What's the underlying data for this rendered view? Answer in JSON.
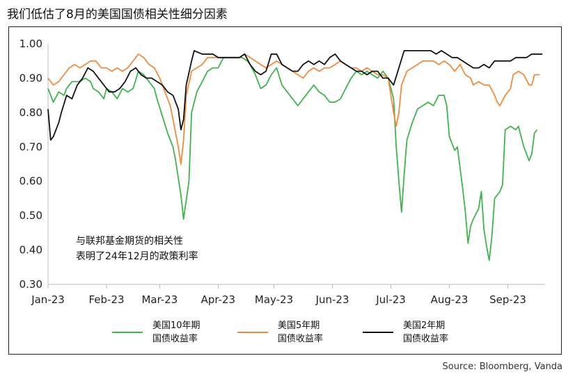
{
  "page": {
    "title": "我们低估了8月的美国国债相关性细分因素",
    "source": "Source: Bloomberg, Vanda"
  },
  "chart_data": {
    "type": "line",
    "title": "我们低估了8月的美国国债相关性细分因素",
    "xlabel": "",
    "ylabel": "",
    "ylim": [
      0.3,
      1.0
    ],
    "yticks": [
      "1.00",
      "0.90",
      "0.80",
      "0.70",
      "0.60",
      "0.50",
      "0.40",
      "0.30"
    ],
    "ytick_values": [
      1.0,
      0.9,
      0.8,
      0.7,
      0.6,
      0.5,
      0.4,
      0.3
    ],
    "xlim": [
      0,
      187
    ],
    "xticks": [
      {
        "label": "Jan-23",
        "x": 0
      },
      {
        "label": "Feb-23",
        "x": 22
      },
      {
        "label": "Mar-23",
        "x": 42
      },
      {
        "label": "Apr-23",
        "x": 64
      },
      {
        "label": "May-23",
        "x": 85
      },
      {
        "label": "Jun-23",
        "x": 107
      },
      {
        "label": "Jul-23",
        "x": 129
      },
      {
        "label": "Aug-23",
        "x": 151
      },
      {
        "label": "Sep-23",
        "x": 173
      }
    ],
    "grid": false,
    "legend_position": "bottom",
    "annotation": {
      "lines": [
        "与联邦基金期货的相关性",
        "表明了24年12月的政策利率"
      ]
    },
    "series": [
      {
        "name": "美国10年期国债收益率",
        "legend_lines": [
          "美国10年期",
          "国债收益率"
        ],
        "color": "#3cb54a",
        "points": [
          [
            0,
            0.87
          ],
          [
            2,
            0.83
          ],
          [
            4,
            0.86
          ],
          [
            6,
            0.85
          ],
          [
            7,
            0.87
          ],
          [
            9,
            0.89
          ],
          [
            12,
            0.89
          ],
          [
            14,
            0.9
          ],
          [
            16,
            0.89
          ],
          [
            17,
            0.87
          ],
          [
            19,
            0.86
          ],
          [
            21,
            0.84
          ],
          [
            22,
            0.87
          ],
          [
            24,
            0.86
          ],
          [
            26,
            0.84
          ],
          [
            28,
            0.87
          ],
          [
            30,
            0.86
          ],
          [
            32,
            0.87
          ],
          [
            34,
            0.92
          ],
          [
            36,
            0.91
          ],
          [
            38,
            0.89
          ],
          [
            40,
            0.87
          ],
          [
            41,
            0.84
          ],
          [
            43,
            0.79
          ],
          [
            45,
            0.74
          ],
          [
            47,
            0.7
          ],
          [
            48,
            0.66
          ],
          [
            50,
            0.56
          ],
          [
            51,
            0.49
          ],
          [
            53,
            0.6
          ],
          [
            54,
            0.8
          ],
          [
            56,
            0.86
          ],
          [
            58,
            0.89
          ],
          [
            60,
            0.92
          ],
          [
            62,
            0.93
          ],
          [
            64,
            0.93
          ],
          [
            66,
            0.96
          ],
          [
            68,
            0.96
          ],
          [
            70,
            0.96
          ],
          [
            73,
            0.96
          ],
          [
            75,
            0.95
          ],
          [
            76,
            0.94
          ],
          [
            78,
            0.91
          ],
          [
            80,
            0.87
          ],
          [
            82,
            0.88
          ],
          [
            84,
            0.91
          ],
          [
            86,
            0.93
          ],
          [
            88,
            0.88
          ],
          [
            90,
            0.86
          ],
          [
            92,
            0.84
          ],
          [
            94,
            0.82
          ],
          [
            96,
            0.84
          ],
          [
            98,
            0.86
          ],
          [
            100,
            0.88
          ],
          [
            102,
            0.86
          ],
          [
            104,
            0.85
          ],
          [
            106,
            0.83
          ],
          [
            108,
            0.83
          ],
          [
            110,
            0.84
          ],
          [
            112,
            0.87
          ],
          [
            114,
            0.9
          ],
          [
            116,
            0.92
          ],
          [
            118,
            0.91
          ],
          [
            120,
            0.92
          ],
          [
            122,
            0.91
          ],
          [
            124,
            0.9
          ],
          [
            126,
            0.92
          ],
          [
            128,
            0.9
          ],
          [
            130,
            0.84
          ],
          [
            131,
            0.7
          ],
          [
            132,
            0.6
          ],
          [
            133,
            0.51
          ],
          [
            134,
            0.62
          ],
          [
            135,
            0.72
          ],
          [
            137,
            0.77
          ],
          [
            139,
            0.81
          ],
          [
            141,
            0.82
          ],
          [
            143,
            0.83
          ],
          [
            145,
            0.82
          ],
          [
            147,
            0.85
          ],
          [
            149,
            0.85
          ],
          [
            150,
            0.82
          ],
          [
            151,
            0.73
          ],
          [
            153,
            0.69
          ],
          [
            154,
            0.7
          ],
          [
            155,
            0.64
          ],
          [
            156,
            0.58
          ],
          [
            157,
            0.51
          ],
          [
            158,
            0.42
          ],
          [
            159,
            0.47
          ],
          [
            160,
            0.49
          ],
          [
            162,
            0.52
          ],
          [
            163,
            0.57
          ],
          [
            164,
            0.46
          ],
          [
            165,
            0.41
          ],
          [
            166,
            0.37
          ],
          [
            167,
            0.44
          ],
          [
            168,
            0.55
          ],
          [
            170,
            0.57
          ],
          [
            171,
            0.59
          ],
          [
            172,
            0.75
          ],
          [
            174,
            0.76
          ],
          [
            176,
            0.75
          ],
          [
            177,
            0.76
          ],
          [
            178,
            0.73
          ],
          [
            179,
            0.7
          ],
          [
            181,
            0.66
          ],
          [
            182,
            0.68
          ],
          [
            183,
            0.74
          ],
          [
            184,
            0.75
          ]
        ]
      },
      {
        "name": "美国5年期国债收益率",
        "legend_lines": [
          "美国5年期",
          "国债收益率"
        ],
        "color": "#f28a3c",
        "points": [
          [
            0,
            0.9
          ],
          [
            2,
            0.88
          ],
          [
            4,
            0.89
          ],
          [
            6,
            0.91
          ],
          [
            8,
            0.93
          ],
          [
            10,
            0.94
          ],
          [
            12,
            0.93
          ],
          [
            14,
            0.94
          ],
          [
            16,
            0.95
          ],
          [
            18,
            0.95
          ],
          [
            20,
            0.93
          ],
          [
            22,
            0.93
          ],
          [
            24,
            0.92
          ],
          [
            26,
            0.93
          ],
          [
            28,
            0.92
          ],
          [
            30,
            0.93
          ],
          [
            32,
            0.95
          ],
          [
            34,
            0.97
          ],
          [
            36,
            0.96
          ],
          [
            38,
            0.94
          ],
          [
            40,
            0.93
          ],
          [
            42,
            0.9
          ],
          [
            44,
            0.86
          ],
          [
            46,
            0.82
          ],
          [
            48,
            0.74
          ],
          [
            49,
            0.7
          ],
          [
            50,
            0.65
          ],
          [
            51,
            0.72
          ],
          [
            52,
            0.85
          ],
          [
            54,
            0.92
          ],
          [
            56,
            0.93
          ],
          [
            58,
            0.94
          ],
          [
            60,
            0.96
          ],
          [
            62,
            0.96
          ],
          [
            65,
            0.96
          ],
          [
            68,
            0.96
          ],
          [
            70,
            0.96
          ],
          [
            72,
            0.96
          ],
          [
            74,
            0.97
          ],
          [
            76,
            0.96
          ],
          [
            78,
            0.95
          ],
          [
            80,
            0.94
          ],
          [
            82,
            0.93
          ],
          [
            84,
            0.94
          ],
          [
            86,
            0.95
          ],
          [
            88,
            0.94
          ],
          [
            90,
            0.93
          ],
          [
            92,
            0.92
          ],
          [
            94,
            0.91
          ],
          [
            96,
            0.9
          ],
          [
            98,
            0.92
          ],
          [
            100,
            0.93
          ],
          [
            102,
            0.92
          ],
          [
            104,
            0.93
          ],
          [
            106,
            0.93
          ],
          [
            108,
            0.94
          ],
          [
            110,
            0.95
          ],
          [
            112,
            0.94
          ],
          [
            114,
            0.93
          ],
          [
            116,
            0.93
          ],
          [
            118,
            0.92
          ],
          [
            120,
            0.93
          ],
          [
            122,
            0.92
          ],
          [
            124,
            0.91
          ],
          [
            126,
            0.91
          ],
          [
            128,
            0.9
          ],
          [
            129,
            0.85
          ],
          [
            130,
            0.8
          ],
          [
            131,
            0.76
          ],
          [
            132,
            0.8
          ],
          [
            133,
            0.88
          ],
          [
            135,
            0.92
          ],
          [
            137,
            0.93
          ],
          [
            139,
            0.94
          ],
          [
            141,
            0.95
          ],
          [
            143,
            0.95
          ],
          [
            145,
            0.95
          ],
          [
            147,
            0.94
          ],
          [
            149,
            0.95
          ],
          [
            151,
            0.94
          ],
          [
            153,
            0.92
          ],
          [
            155,
            0.94
          ],
          [
            157,
            0.91
          ],
          [
            159,
            0.9
          ],
          [
            160,
            0.88
          ],
          [
            162,
            0.89
          ],
          [
            164,
            0.88
          ],
          [
            166,
            0.88
          ],
          [
            168,
            0.85
          ],
          [
            169,
            0.83
          ],
          [
            170,
            0.82
          ],
          [
            172,
            0.85
          ],
          [
            174,
            0.87
          ],
          [
            175,
            0.91
          ],
          [
            177,
            0.92
          ],
          [
            179,
            0.91
          ],
          [
            181,
            0.88
          ],
          [
            182,
            0.88
          ],
          [
            183,
            0.91
          ],
          [
            185,
            0.91
          ]
        ]
      },
      {
        "name": "美国2年期国债收益率",
        "legend_lines": [
          "美国2年期",
          "国债收益率"
        ],
        "color": "#111111",
        "points": [
          [
            0,
            0.81
          ],
          [
            1,
            0.72
          ],
          [
            2,
            0.73
          ],
          [
            4,
            0.77
          ],
          [
            5,
            0.8
          ],
          [
            7,
            0.85
          ],
          [
            9,
            0.84
          ],
          [
            11,
            0.88
          ],
          [
            13,
            0.9
          ],
          [
            15,
            0.93
          ],
          [
            17,
            0.92
          ],
          [
            19,
            0.9
          ],
          [
            21,
            0.88
          ],
          [
            23,
            0.86
          ],
          [
            25,
            0.86
          ],
          [
            27,
            0.87
          ],
          [
            29,
            0.89
          ],
          [
            31,
            0.92
          ],
          [
            33,
            0.93
          ],
          [
            35,
            0.91
          ],
          [
            37,
            0.9
          ],
          [
            39,
            0.9
          ],
          [
            41,
            0.89
          ],
          [
            43,
            0.88
          ],
          [
            45,
            0.86
          ],
          [
            47,
            0.85
          ],
          [
            49,
            0.81
          ],
          [
            50,
            0.75
          ],
          [
            51,
            0.78
          ],
          [
            52,
            0.88
          ],
          [
            54,
            0.95
          ],
          [
            55,
            0.98
          ],
          [
            58,
            0.97
          ],
          [
            60,
            0.97
          ],
          [
            62,
            0.97
          ],
          [
            64,
            0.96
          ],
          [
            66,
            0.96
          ],
          [
            68,
            0.96
          ],
          [
            70,
            0.96
          ],
          [
            72,
            0.96
          ],
          [
            74,
            0.97
          ],
          [
            76,
            0.94
          ],
          [
            78,
            0.92
          ],
          [
            80,
            0.91
          ],
          [
            82,
            0.92
          ],
          [
            84,
            0.97
          ],
          [
            86,
            0.97
          ],
          [
            88,
            0.94
          ],
          [
            90,
            0.93
          ],
          [
            92,
            0.92
          ],
          [
            94,
            0.92
          ],
          [
            96,
            0.94
          ],
          [
            98,
            0.95
          ],
          [
            100,
            0.94
          ],
          [
            102,
            0.95
          ],
          [
            104,
            0.94
          ],
          [
            106,
            0.96
          ],
          [
            108,
            0.97
          ],
          [
            110,
            0.95
          ],
          [
            112,
            0.94
          ],
          [
            114,
            0.93
          ],
          [
            116,
            0.92
          ],
          [
            118,
            0.92
          ],
          [
            120,
            0.91
          ],
          [
            122,
            0.92
          ],
          [
            124,
            0.92
          ],
          [
            126,
            0.9
          ],
          [
            128,
            0.9
          ],
          [
            130,
            0.88
          ],
          [
            132,
            0.93
          ],
          [
            134,
            0.98
          ],
          [
            136,
            0.98
          ],
          [
            138,
            0.98
          ],
          [
            140,
            0.98
          ],
          [
            142,
            0.98
          ],
          [
            144,
            0.98
          ],
          [
            146,
            0.97
          ],
          [
            148,
            0.98
          ],
          [
            150,
            0.97
          ],
          [
            152,
            0.96
          ],
          [
            154,
            0.96
          ],
          [
            156,
            0.95
          ],
          [
            158,
            0.94
          ],
          [
            160,
            0.93
          ],
          [
            162,
            0.93
          ],
          [
            164,
            0.94
          ],
          [
            166,
            0.93
          ],
          [
            168,
            0.95
          ],
          [
            170,
            0.95
          ],
          [
            172,
            0.95
          ],
          [
            174,
            0.95
          ],
          [
            176,
            0.96
          ],
          [
            178,
            0.96
          ],
          [
            180,
            0.96
          ],
          [
            182,
            0.97
          ],
          [
            184,
            0.97
          ],
          [
            186,
            0.97
          ]
        ]
      }
    ]
  }
}
